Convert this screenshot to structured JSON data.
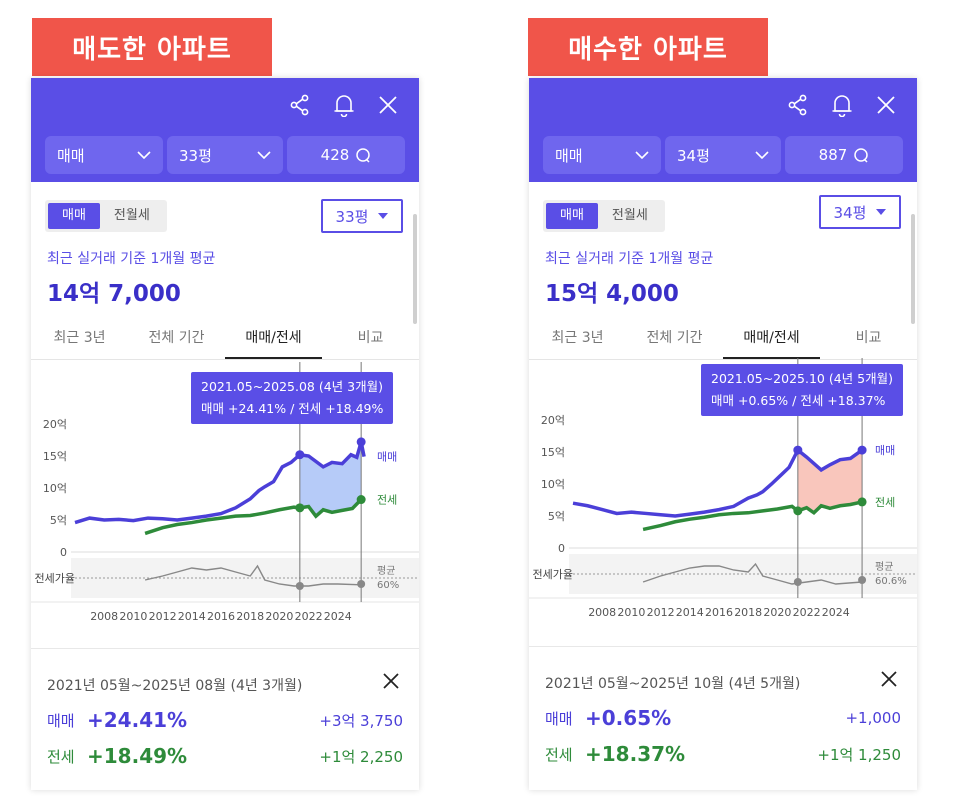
{
  "panels": [
    {
      "label": "매도한 아파트",
      "selects": {
        "type": "매매",
        "size": "33평",
        "count": "428"
      },
      "toggle": {
        "sale": "매매",
        "rent": "전월세"
      },
      "size_button": "33평",
      "caption": "최근 실거래 기준 1개월 평균",
      "price": "14억 7,000",
      "tabs": [
        "최근 3년",
        "전체 기간",
        "매매/전세",
        "비교"
      ],
      "tooltip": {
        "period": "2021.05~2025.08 (4년 3개월)",
        "detail": "매매 +24.41%  /  전세 +18.49%"
      },
      "summary": {
        "period": "2021년 05월~2025년 08월 (4년 3개월)",
        "sale_label": "매매",
        "sale_pct": "+24.41%",
        "sale_amt": "+3억 3,750",
        "rent_label": "전세",
        "rent_pct": "+18.49%",
        "rent_amt": "+1억 2,250"
      }
    },
    {
      "label": "매수한 아파트",
      "selects": {
        "type": "매매",
        "size": "34평",
        "count": "887"
      },
      "toggle": {
        "sale": "매매",
        "rent": "전월세"
      },
      "size_button": "34평",
      "caption": "최근 실거래 기준 1개월 평균",
      "price": "15억 4,000",
      "tabs": [
        "최근 3년",
        "전체 기간",
        "매매/전세",
        "비교"
      ],
      "tooltip": {
        "period": "2021.05~2025.10 (4년 5개월)",
        "detail": "매매 +0.65%  /  전세 +18.37%"
      },
      "summary": {
        "period": "2021년 05월~2025년 10월 (4년 5개월)",
        "sale_label": "매매",
        "sale_pct": "+0.65%",
        "sale_amt": "+1,000",
        "rent_label": "전세",
        "rent_pct": "+18.37%",
        "rent_amt": "+1억 1,250"
      }
    }
  ],
  "chart_data": [
    {
      "type": "line",
      "y_ticks": [
        "20억",
        "15억",
        "10억",
        "5억",
        "0"
      ],
      "x_ticks": [
        "2008",
        "2010",
        "2012",
        "2014",
        "2016",
        "2018",
        "2020",
        "2022",
        "2024"
      ],
      "series_labels": {
        "sale": "매매",
        "rent": "전세"
      },
      "ratio_label": "전세가율",
      "ratio_avg_label": "평균",
      "ratio_avg_value": "60%",
      "ylim": [
        0,
        20
      ],
      "xlim": [
        2006,
        2026
      ],
      "colors": {
        "sale": "#4b3fd8",
        "rent": "#2e8b3a",
        "highlight": "#9dbaf5"
      },
      "range": [
        2021.4,
        2025.6
      ],
      "sale": [
        [
          2006.0,
          4.6
        ],
        [
          2007,
          5.3
        ],
        [
          2008,
          5.0
        ],
        [
          2009,
          5.1
        ],
        [
          2010,
          4.9
        ],
        [
          2011,
          5.3
        ],
        [
          2012,
          5.2
        ],
        [
          2013,
          5.0
        ],
        [
          2014,
          5.3
        ],
        [
          2015,
          5.6
        ],
        [
          2016,
          6.0
        ],
        [
          2017,
          6.9
        ],
        [
          2018,
          8.3
        ],
        [
          2018.6,
          9.6
        ],
        [
          2019,
          10.2
        ],
        [
          2019.6,
          11.0
        ],
        [
          2020.2,
          13.3
        ],
        [
          2020.8,
          14.0
        ],
        [
          2021.4,
          15.2
        ],
        [
          2022,
          15.0
        ],
        [
          2023,
          13.3
        ],
        [
          2023.6,
          14.0
        ],
        [
          2024.3,
          13.8
        ],
        [
          2024.9,
          15.2
        ],
        [
          2025.3,
          14.8
        ],
        [
          2025.6,
          17.2
        ],
        [
          2025.8,
          14.9
        ]
      ],
      "rent": [
        [
          2010.8,
          2.9
        ],
        [
          2012,
          3.8
        ],
        [
          2013,
          4.3
        ],
        [
          2014,
          4.6
        ],
        [
          2015,
          5.0
        ],
        [
          2016,
          5.3
        ],
        [
          2017,
          5.6
        ],
        [
          2018,
          5.7
        ],
        [
          2019,
          6.1
        ],
        [
          2020,
          6.6
        ],
        [
          2021,
          7.0
        ],
        [
          2021.4,
          6.9
        ],
        [
          2022,
          7.1
        ],
        [
          2022.5,
          5.6
        ],
        [
          2023,
          6.6
        ],
        [
          2023.6,
          6.2
        ],
        [
          2024.3,
          6.5
        ],
        [
          2025,
          6.8
        ],
        [
          2025.6,
          8.2
        ]
      ],
      "ratio": [
        [
          2010.8,
          0.6
        ],
        [
          2012,
          0.7
        ],
        [
          2013,
          0.8
        ],
        [
          2014,
          0.9
        ],
        [
          2015,
          0.85
        ],
        [
          2016,
          0.9
        ],
        [
          2017,
          0.8
        ],
        [
          2018,
          0.7
        ],
        [
          2018.5,
          0.95
        ],
        [
          2019,
          0.6
        ],
        [
          2020,
          0.5
        ],
        [
          2021,
          0.45
        ],
        [
          2022,
          0.45
        ],
        [
          2023,
          0.5
        ],
        [
          2024,
          0.5
        ],
        [
          2025.6,
          0.48
        ]
      ]
    },
    {
      "type": "line",
      "y_ticks": [
        "20억",
        "15억",
        "10억",
        "5억",
        "0"
      ],
      "x_ticks": [
        "2008",
        "2010",
        "2012",
        "2014",
        "2016",
        "2018",
        "2020",
        "2022",
        "2024"
      ],
      "series_labels": {
        "sale": "매매",
        "rent": "전세"
      },
      "ratio_label": "전세가율",
      "ratio_avg_label": "평균",
      "ratio_avg_value": "60.6%",
      "ylim": [
        0,
        20
      ],
      "xlim": [
        2006,
        2026
      ],
      "colors": {
        "sale": "#4b3fd8",
        "rent": "#2e8b3a",
        "highlight": "#f7b3a6"
      },
      "range": [
        2021.4,
        2025.8
      ],
      "sale": [
        [
          2006.0,
          7.0
        ],
        [
          2007,
          6.6
        ],
        [
          2008,
          6.0
        ],
        [
          2009,
          5.4
        ],
        [
          2010,
          5.6
        ],
        [
          2011,
          5.4
        ],
        [
          2012,
          5.2
        ],
        [
          2013,
          5.0
        ],
        [
          2014,
          5.3
        ],
        [
          2015,
          5.6
        ],
        [
          2016,
          6.0
        ],
        [
          2017,
          6.5
        ],
        [
          2018,
          7.8
        ],
        [
          2018.6,
          8.3
        ],
        [
          2019,
          8.8
        ],
        [
          2019.6,
          10.0
        ],
        [
          2020.2,
          11.3
        ],
        [
          2020.8,
          12.6
        ],
        [
          2021.4,
          15.3
        ],
        [
          2022,
          14.2
        ],
        [
          2023,
          12.2
        ],
        [
          2023.6,
          13.0
        ],
        [
          2024.3,
          13.8
        ],
        [
          2025,
          14.0
        ],
        [
          2025.8,
          15.3
        ]
      ],
      "rent": [
        [
          2010.8,
          2.9
        ],
        [
          2012,
          3.5
        ],
        [
          2013,
          4.1
        ],
        [
          2014,
          4.5
        ],
        [
          2015,
          4.8
        ],
        [
          2016,
          5.2
        ],
        [
          2017,
          5.4
        ],
        [
          2018,
          5.5
        ],
        [
          2019,
          5.8
        ],
        [
          2020,
          6.1
        ],
        [
          2021,
          6.5
        ],
        [
          2021.4,
          5.8
        ],
        [
          2022,
          6.3
        ],
        [
          2022.5,
          5.5
        ],
        [
          2023,
          6.6
        ],
        [
          2023.6,
          6.2
        ],
        [
          2024.3,
          6.6
        ],
        [
          2025,
          6.8
        ],
        [
          2025.8,
          7.2
        ]
      ],
      "ratio": [
        [
          2010.8,
          0.45
        ],
        [
          2012,
          0.6
        ],
        [
          2013,
          0.7
        ],
        [
          2014,
          0.8
        ],
        [
          2015,
          0.85
        ],
        [
          2016,
          0.85
        ],
        [
          2017,
          0.75
        ],
        [
          2018,
          0.7
        ],
        [
          2018.5,
          0.9
        ],
        [
          2019,
          0.6
        ],
        [
          2020,
          0.5
        ],
        [
          2021,
          0.4
        ],
        [
          2022,
          0.45
        ],
        [
          2023,
          0.5
        ],
        [
          2024,
          0.4
        ],
        [
          2025.8,
          0.45
        ]
      ]
    }
  ]
}
